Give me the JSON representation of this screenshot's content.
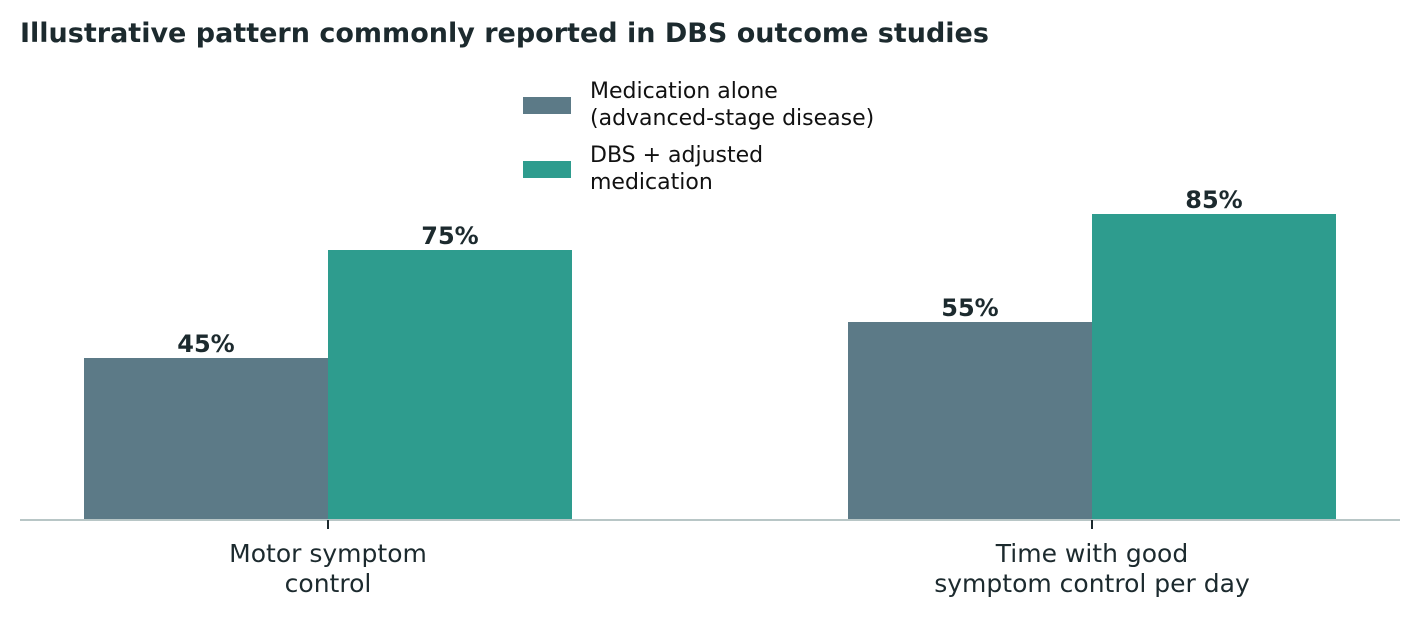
{
  "chart_data": {
    "type": "bar",
    "title": "Illustrative pattern commonly reported in DBS outcome studies",
    "categories": [
      [
        "Motor symptom",
        "control"
      ],
      [
        "Time with good",
        "symptom control per day"
      ]
    ],
    "series": [
      {
        "name_lines": [
          "Medication alone",
          "(advanced-stage disease)"
        ],
        "color": "#5c7a87",
        "values": [
          45,
          55
        ],
        "labels": [
          "45%",
          "55%"
        ]
      },
      {
        "name_lines": [
          "DBS + adjusted",
          "medication"
        ],
        "color": "#2e9c8e",
        "values": [
          75,
          85
        ],
        "labels": [
          "75%",
          "85%"
        ]
      }
    ],
    "ylim": [
      0,
      100
    ],
    "unit": "%",
    "grid": false,
    "legend_position": "top-center",
    "axis_color": "#b8c6c6"
  }
}
